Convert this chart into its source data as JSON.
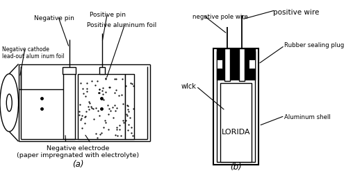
{
  "bg_color": "#ffffff",
  "line_color": "#000000",
  "fig_width": 5.08,
  "fig_height": 2.76,
  "dpi": 100,
  "a_label": "(a)",
  "b_label": "(b)",
  "neg_cathode_label": "Negative cathode\nlead-out alum inum foil",
  "neg_pin_label": "Negative pin",
  "pos_pin_label": "Positive pin",
  "pos_al_foil_label": "Positive aluminum foil",
  "neg_electrode_label": "Negative electrode\n(paper impregnated with electrolyte)",
  "neg_pole_wire_label": "negative pole wire",
  "pos_wire_label": "positive wire",
  "rubber_plug_label": "Rubber sealing plug",
  "wick_label": "wIck",
  "lorida_label": "LORIDA",
  "al_shell_label": "Aluminum shell"
}
